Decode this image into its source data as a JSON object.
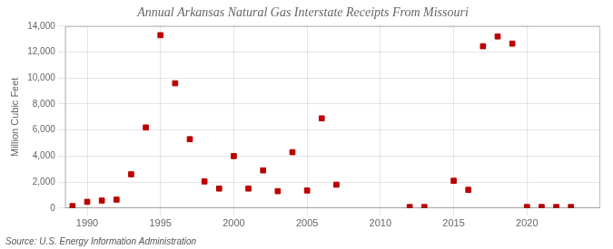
{
  "chart_data": {
    "type": "scatter",
    "title": "Annual Arkansas Natural Gas Interstate Receipts From Missouri",
    "ylabel": "Million Cubic Feet",
    "annotations": [
      "Source: U.S. Energy Information Administration"
    ],
    "x": [
      1989,
      1990,
      1991,
      1992,
      1993,
      1994,
      1995,
      1996,
      1997,
      1998,
      1999,
      2000,
      2001,
      2002,
      2003,
      2004,
      2005,
      2006,
      2007,
      2012,
      2013,
      2015,
      2016,
      2017,
      2018,
      2019,
      2020,
      2021,
      2022,
      2023
    ],
    "values": [
      150,
      480,
      580,
      650,
      2600,
      6200,
      13300,
      9600,
      5300,
      2050,
      1500,
      4000,
      1500,
      2900,
      1300,
      4300,
      1350,
      6900,
      1800,
      80,
      80,
      2100,
      1400,
      12450,
      13200,
      12650,
      80,
      80,
      80,
      80
    ],
    "color": "#bb0000",
    "marker": "square",
    "xlim": [
      1988.5,
      2025
    ],
    "xticks": [
      1990,
      1995,
      2000,
      2005,
      2010,
      2015,
      2020
    ],
    "ylim": [
      0,
      14000
    ],
    "yticks": [
      0,
      {
        "value": 2000,
        "label": "2,000"
      },
      {
        "value": 4000,
        "label": "4,000"
      },
      {
        "value": 6000,
        "label": "6,000"
      },
      {
        "value": 8000,
        "label": "8,000"
      },
      {
        "value": 10000,
        "label": "10,000"
      },
      {
        "value": 12000,
        "label": "12,000"
      },
      {
        "value": 14000,
        "label": "14,000"
      }
    ],
    "grid": true
  }
}
